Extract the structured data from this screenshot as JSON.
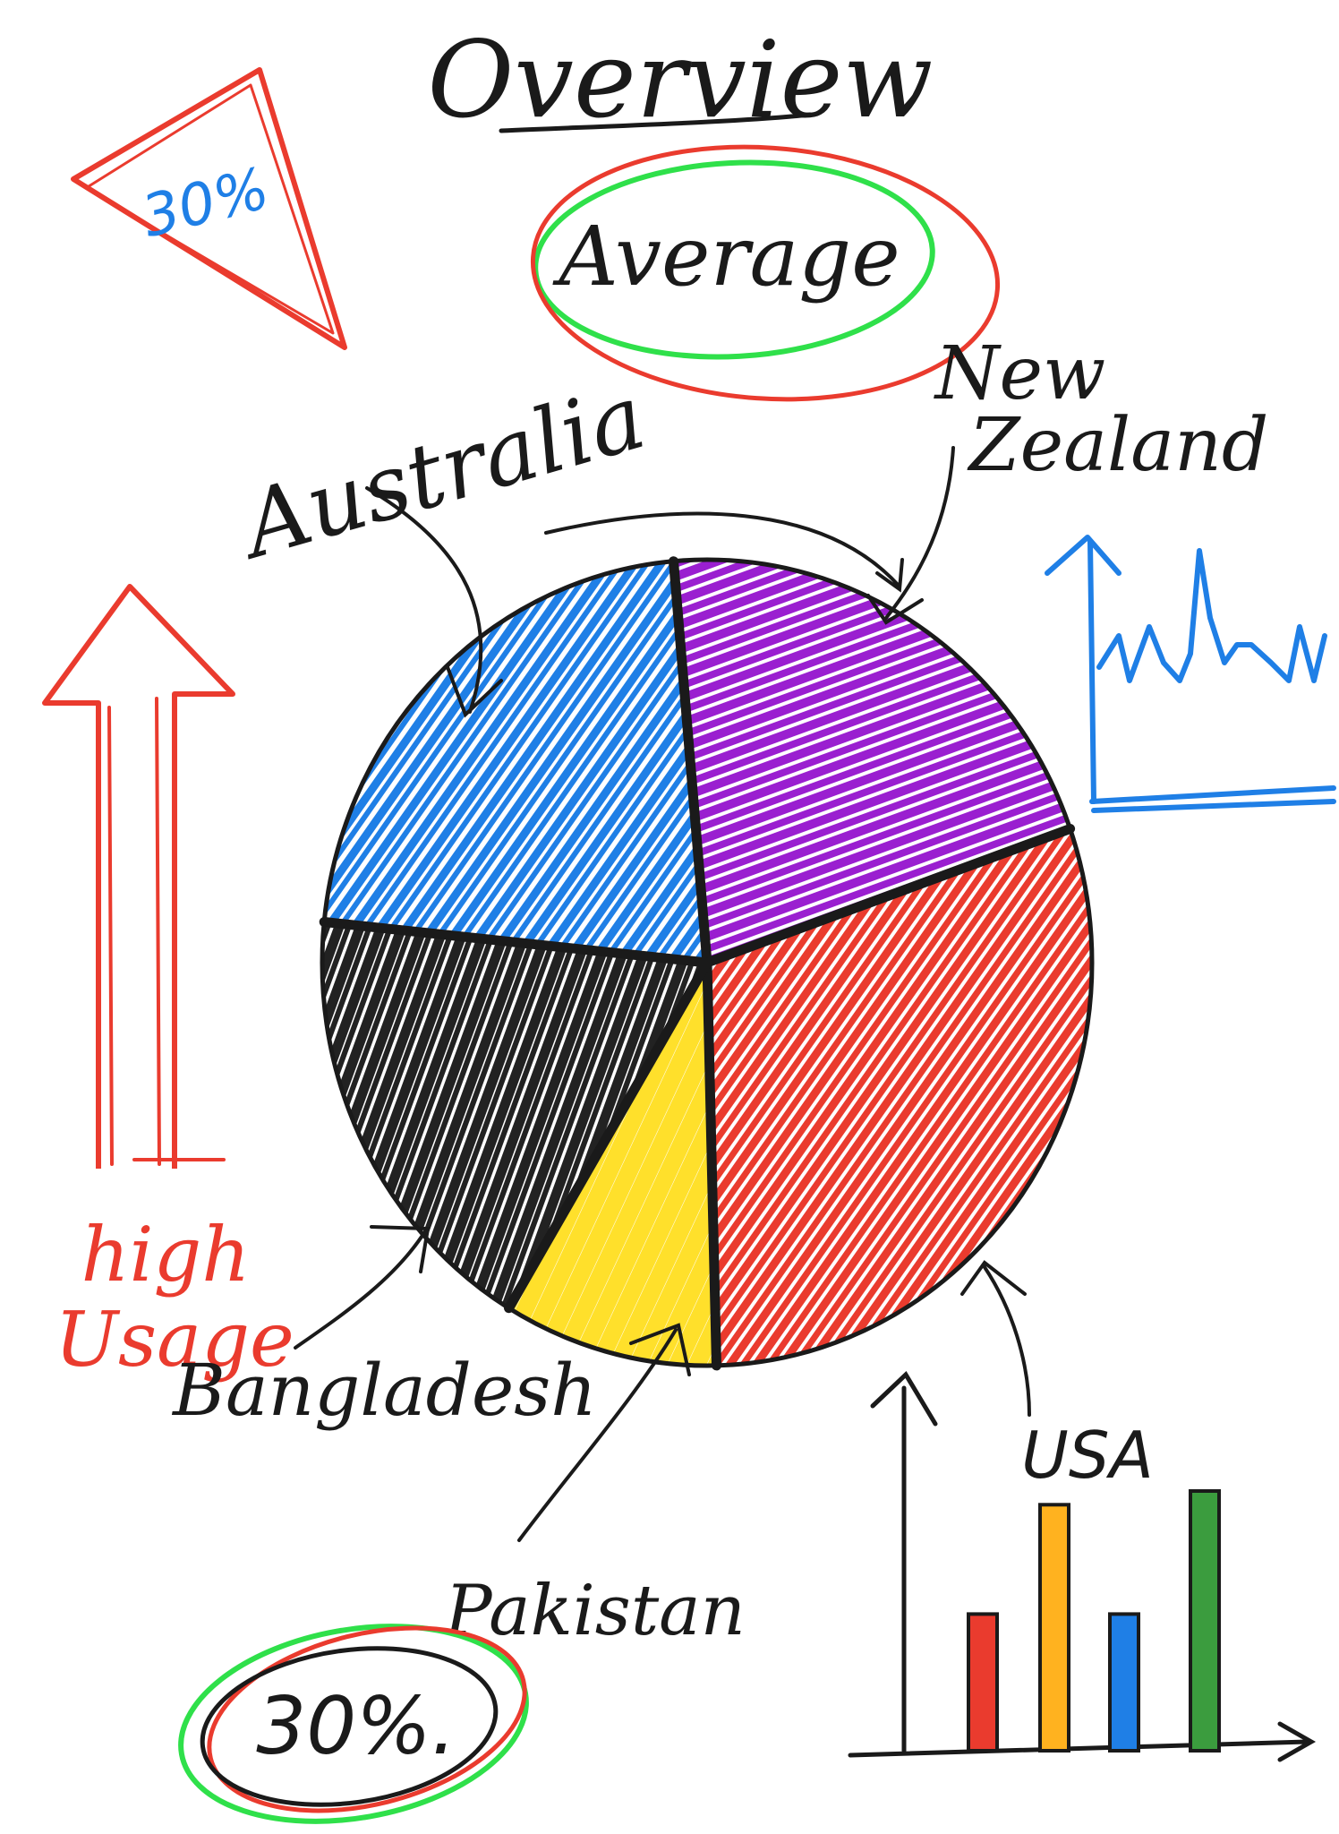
{
  "title": "Overview",
  "average_label": "Average",
  "high_usage_label": [
    "high",
    "Usage"
  ],
  "triangle_label": "30%",
  "circle_label": "30%.",
  "bar_label": "USA",
  "colors": {
    "ink": "#1a1a1a",
    "red": "#ea3b2e",
    "blue": "#1f7fe6",
    "green": "#2fe04a",
    "purple": "#9a1fd0",
    "yellow": "#ffe02b",
    "black": "#222222",
    "orange": "#ffb21f",
    "darkgreen": "#3b9c3e"
  },
  "chart_data": {
    "type": "pie",
    "title": "",
    "slices": [
      {
        "label": "New Zealand",
        "color": "#9a1fd0"
      },
      {
        "label": "USA",
        "color": "#ea3b2e"
      },
      {
        "label": "Pakistan",
        "color": "#ffe02b"
      },
      {
        "label": "Bangladesh",
        "color": "#222222"
      },
      {
        "label": "Australia",
        "color": "#1f7fe6"
      }
    ],
    "values": [
      21,
      30,
      9,
      18,
      22
    ]
  },
  "mini_bar_chart": {
    "type": "bar",
    "values": [
      5,
      9,
      5,
      9.5
    ],
    "colors": [
      "#ea3b2e",
      "#ffb21f",
      "#1f7fe6",
      "#3b9c3e"
    ]
  }
}
